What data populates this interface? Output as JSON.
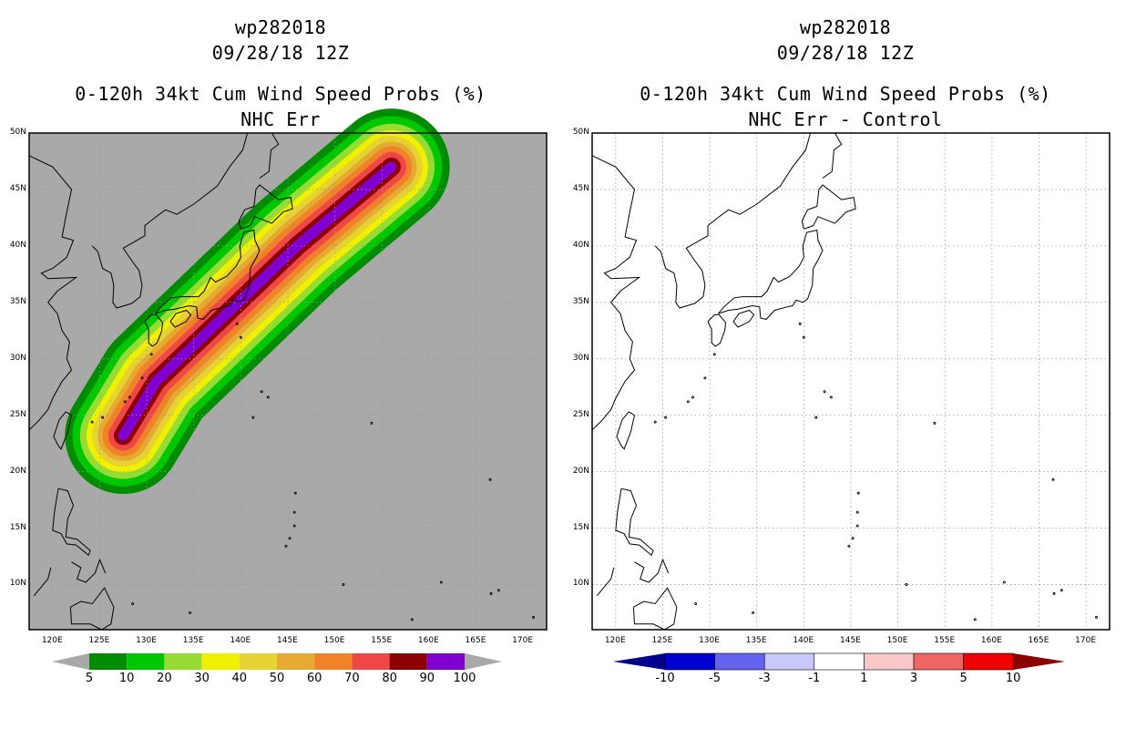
{
  "panels": [
    {
      "storm_id": "wp282018",
      "date": "09/28/18 12Z",
      "title": "0-120h 34kt Cum Wind Speed Probs (%)",
      "subtitle": "NHC Err",
      "background": "#a9a9a9",
      "legend": {
        "labels": [
          "5",
          "10",
          "20",
          "30",
          "40",
          "50",
          "60",
          "70",
          "80",
          "90",
          "100"
        ],
        "colors": [
          "#008c00",
          "#00c800",
          "#96dc32",
          "#f0f000",
          "#e6d232",
          "#e6aa32",
          "#f08228",
          "#f04646",
          "#8c0000",
          "#8000d2"
        ],
        "end_color": "#a9a9a9"
      }
    },
    {
      "storm_id": "wp282018",
      "date": "09/28/18 12Z",
      "title": "0-120h 34kt Cum Wind Speed Probs (%)",
      "subtitle": "NHC Err - Control",
      "background": "#ffffff",
      "legend": {
        "labels": [
          "-10",
          "-5",
          "-3",
          "-1",
          "1",
          "3",
          "5",
          "10"
        ],
        "colors": [
          "#0000d2",
          "#6464f0",
          "#c8c8fa",
          "#ffffff",
          "#fac8c8",
          "#f06464",
          "#f00000"
        ],
        "end_left": "#00008c",
        "end_right": "#8c0000"
      }
    }
  ],
  "axes": {
    "lon_labels": [
      "120E",
      "125E",
      "130E",
      "135E",
      "140E",
      "145E",
      "150E",
      "155E",
      "160E",
      "165E",
      "170E"
    ],
    "lat_labels": [
      "50N",
      "45N",
      "40N",
      "35N",
      "30N",
      "25N",
      "20N",
      "15N",
      "10N"
    ]
  },
  "map_data": {
    "lon_range": [
      117.5,
      172.5
    ],
    "lat_range": [
      6,
      50
    ],
    "lon_ticks": [
      120,
      125,
      130,
      135,
      140,
      145,
      150,
      155,
      160,
      165,
      170
    ],
    "lat_ticks": [
      50,
      45,
      40,
      35,
      30,
      25,
      20,
      15,
      10
    ],
    "swath_track": [
      [
        127.5,
        23.2
      ],
      [
        131,
        28
      ],
      [
        136,
        32
      ],
      [
        141,
        36
      ],
      [
        146,
        40
      ],
      [
        151,
        43.5
      ],
      [
        156,
        47
      ]
    ],
    "swath_widths": [
      6.2,
      5.4,
      4.6,
      3.9,
      3.3,
      2.7,
      2.2,
      1.6,
      1.0,
      0.55
    ]
  }
}
